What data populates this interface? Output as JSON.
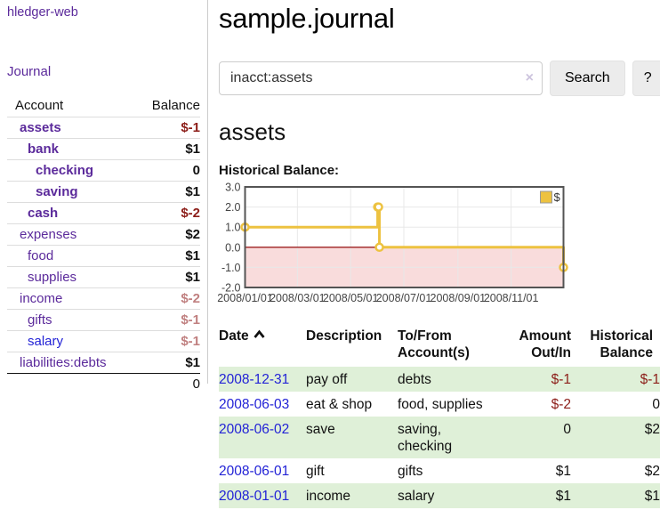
{
  "app": {
    "brand": "hledger-web",
    "nav": {
      "journal": "Journal"
    }
  },
  "sidebar": {
    "headers": {
      "account": "Account",
      "balance": "Balance"
    },
    "accounts": [
      {
        "name": "assets",
        "balance": "$-1",
        "level": 1
      },
      {
        "name": "bank",
        "balance": "$1",
        "level": 2
      },
      {
        "name": "checking",
        "balance": "0",
        "level": 3
      },
      {
        "name": "saving",
        "balance": "$1",
        "level": 3
      },
      {
        "name": "cash",
        "balance": "$-2",
        "level": 2
      },
      {
        "name": "expenses",
        "balance": "$2",
        "level": 1
      },
      {
        "name": "food",
        "balance": "$1",
        "level": 2
      },
      {
        "name": "supplies",
        "balance": "$1",
        "level": 2
      },
      {
        "name": "income",
        "balance": "$-2",
        "level": 1
      },
      {
        "name": "gifts",
        "balance": "$-1",
        "level": 2
      },
      {
        "name": "salary",
        "balance": "$-1",
        "level": 2
      },
      {
        "name": "liabilities:debts",
        "balance": "$1",
        "level": 1
      }
    ],
    "total": "0"
  },
  "header": {
    "title": "sample.journal"
  },
  "search": {
    "value": "inacct:assets",
    "clear_icon": "×",
    "search_button": "Search",
    "help_button": "?"
  },
  "account_page": {
    "heading": "assets",
    "chart_label": "Historical Balance:"
  },
  "chart_data": {
    "type": "line",
    "step": true,
    "title": "Historical Balance",
    "ylim": [
      -2,
      3
    ],
    "x_range_days": 365,
    "y_ticks": [
      3,
      2,
      1,
      0,
      -1,
      -2
    ],
    "x_ticks": [
      {
        "day": 0,
        "label": "2008/01/01"
      },
      {
        "day": 60,
        "label": "2008/03/01"
      },
      {
        "day": 121,
        "label": "2008/05/01"
      },
      {
        "day": 182,
        "label": "2008/07/01"
      },
      {
        "day": 244,
        "label": "2008/09/01"
      },
      {
        "day": 305,
        "label": "2008/11/01"
      }
    ],
    "series": [
      {
        "name": "$",
        "color": "#edc240",
        "points": [
          {
            "date": "2008-01-01",
            "day": 0,
            "value": 1
          },
          {
            "date": "2008-06-01",
            "day": 152,
            "value": 2
          },
          {
            "date": "2008-06-02",
            "day": 153,
            "value": 2
          },
          {
            "date": "2008-06-03",
            "day": 154,
            "value": 0
          },
          {
            "date": "2008-12-31",
            "day": 365,
            "value": -1
          }
        ]
      }
    ],
    "legend": {
      "label": "$",
      "position": "top-right"
    },
    "grid": true,
    "negative_region_color": "#f9dcdc",
    "zero_line_color": "#9d1f1f",
    "grid_color": "#e8e8e8",
    "border_color": "#545454"
  },
  "register": {
    "headers": [
      "Date",
      "Description",
      "To/From Account(s)",
      "Amount Out/In",
      "Historical Balance"
    ],
    "rows": [
      {
        "date": "2008-12-31",
        "description": "pay off",
        "accounts": "debts",
        "amount": "$-1",
        "balance": "$-1"
      },
      {
        "date": "2008-06-03",
        "description": "eat & shop",
        "accounts": "food, supplies",
        "amount": "$-2",
        "balance": "0"
      },
      {
        "date": "2008-06-02",
        "description": "save",
        "accounts": "saving, checking",
        "amount": "0",
        "balance": "$2"
      },
      {
        "date": "2008-06-01",
        "description": "gift",
        "accounts": "gifts",
        "amount": "$1",
        "balance": "$2"
      },
      {
        "date": "2008-01-01",
        "description": "income",
        "accounts": "salary",
        "amount": "$1",
        "balance": "$1"
      }
    ]
  },
  "colors": {
    "link_purple": "#5b2a9b",
    "link_blue": "#2323d6",
    "negative_strong": "#8c1d18",
    "negative_muted": "#c08080",
    "row_highlight_green": "#dff0d8",
    "series_gold": "#edc240"
  }
}
